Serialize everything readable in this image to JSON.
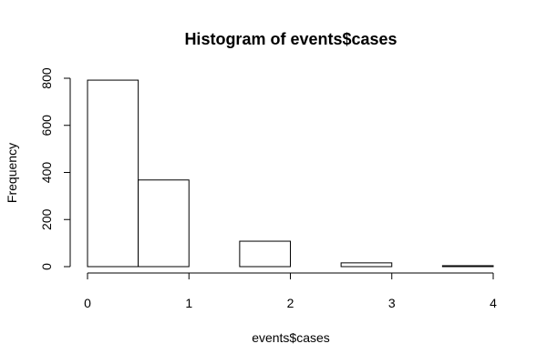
{
  "chart_data": {
    "type": "bar",
    "title": "Histogram of events$cases",
    "xlabel": "events$cases",
    "ylabel": "Frequency",
    "bins": [
      {
        "start": 0.0,
        "end": 0.5,
        "value": 792
      },
      {
        "start": 0.5,
        "end": 1.0,
        "value": 368
      },
      {
        "start": 1.0,
        "end": 1.5,
        "value": 0
      },
      {
        "start": 1.5,
        "end": 2.0,
        "value": 108
      },
      {
        "start": 2.0,
        "end": 2.5,
        "value": 0
      },
      {
        "start": 2.5,
        "end": 3.0,
        "value": 16
      },
      {
        "start": 3.0,
        "end": 3.5,
        "value": 0
      },
      {
        "start": 3.5,
        "end": 4.0,
        "value": 4
      }
    ],
    "xlim": [
      0,
      4
    ],
    "ylim": [
      0,
      800
    ],
    "xticks": [
      0,
      1,
      2,
      3,
      4
    ],
    "yticks": [
      0,
      200,
      400,
      600,
      800
    ],
    "grid": false,
    "bar_fill": "#ffffff",
    "bar_stroke": "#000000"
  }
}
